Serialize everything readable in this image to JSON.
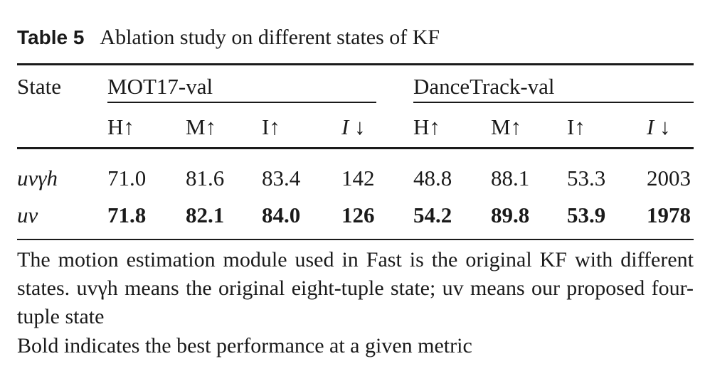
{
  "caption": {
    "label": "Table 5",
    "title": "Ablation study on different states of KF"
  },
  "table": {
    "row_header": "State",
    "groups": [
      "MOT17-val",
      "DanceTrack-val"
    ],
    "metrics": [
      "H↑",
      "M↑",
      "I↑",
      "I ↓",
      "H↑",
      "M↑",
      "I↑",
      "I ↓"
    ],
    "rows": [
      {
        "state": "uvγh",
        "values": [
          "71.0",
          "81.6",
          "83.4",
          "142",
          "48.8",
          "88.1",
          "53.3",
          "2003"
        ],
        "bold": false
      },
      {
        "state": "uv",
        "values": [
          "71.8",
          "82.1",
          "84.0",
          "126",
          "54.2",
          "89.8",
          "53.9",
          "1978"
        ],
        "bold": true
      }
    ]
  },
  "notes": {
    "line1": "The motion estimation module used in Fast is the original KF with different states. uvγh means the original eight-tuple state; uv means our proposed four-tuple state",
    "line2": "Bold indicates the best performance at a given metric"
  }
}
